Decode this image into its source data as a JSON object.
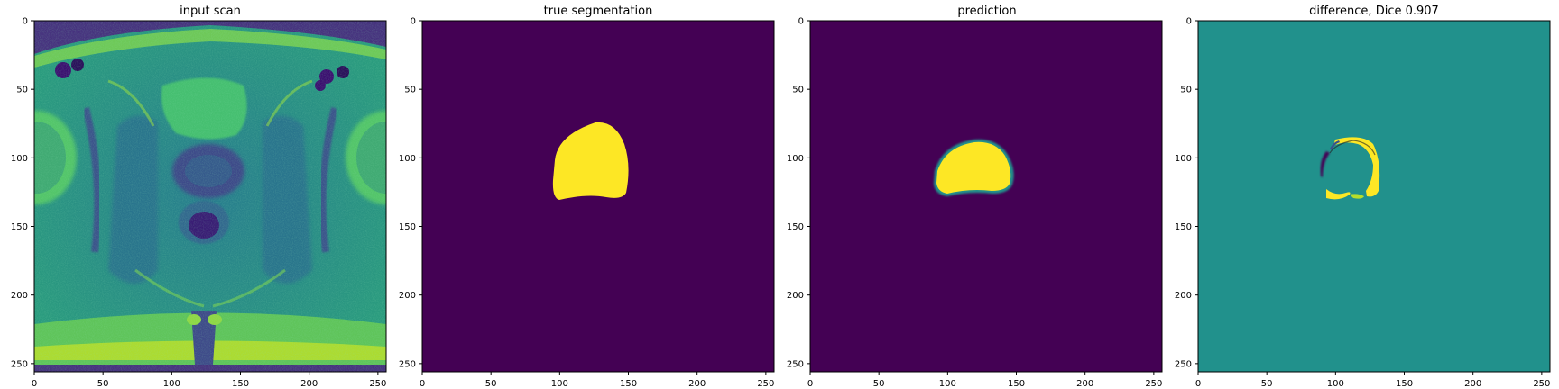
{
  "figure": {
    "panels": [
      {
        "title": "input scan",
        "content": "mri-axial-pelvis-scan"
      },
      {
        "title": "true segmentation",
        "content": "segmentation-mask"
      },
      {
        "title": "prediction",
        "content": "predicted-mask"
      },
      {
        "title": "difference, Dice 0.907",
        "content": "difference-map"
      }
    ],
    "x_ticks": [
      "0",
      "50",
      "100",
      "150",
      "200",
      "250"
    ],
    "y_ticks": [
      "0",
      "50",
      "100",
      "150",
      "200",
      "250"
    ],
    "image_size": [
      256,
      256
    ],
    "colors": {
      "viridis_dark": "#440154",
      "viridis_mid": "#21918c",
      "viridis_yellow": "#fde725",
      "scan_teal": "#2a9b7e",
      "scan_green": "#5fc45a"
    }
  }
}
